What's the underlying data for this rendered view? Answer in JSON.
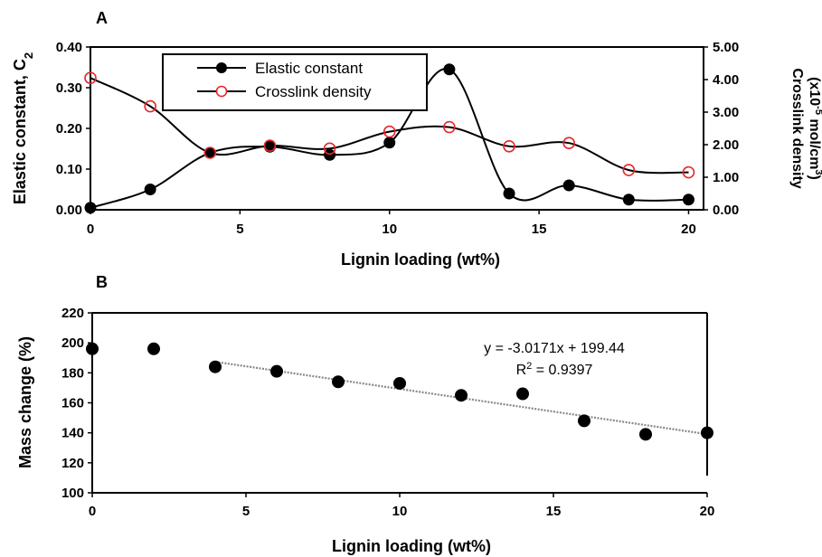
{
  "chart_data": [
    {
      "panel": "A",
      "type": "line",
      "xlabel": "Lignin loading (wt%)",
      "ylabel": "Elastic constant, C",
      "ylabel_sub": "2",
      "ylabel_right_prefix": "Crosslink density",
      "ylabel_right_units": "(x10",
      "ylabel_right_exp": "-5",
      "ylabel_right_units2": " mol/cm",
      "ylabel_right_exp2": "3",
      "ylabel_right_close": ")",
      "xlim": [
        0,
        20.5
      ],
      "ylim": [
        0,
        0.4
      ],
      "ylim_right": [
        0,
        5
      ],
      "xticks": [
        "0",
        "5",
        "10",
        "15",
        "20"
      ],
      "xtick_values": [
        0,
        5,
        10,
        15,
        20
      ],
      "yticks": [
        "0.00",
        "0.10",
        "0.20",
        "0.30",
        "0.40"
      ],
      "ytick_values": [
        0,
        0.1,
        0.2,
        0.3,
        0.4
      ],
      "yticks_right": [
        "0.00",
        "1.00",
        "2.00",
        "3.00",
        "4.00",
        "5.00"
      ],
      "ytick_values_right": [
        0,
        1,
        2,
        3,
        4,
        5
      ],
      "legend_position": "top-center",
      "series": [
        {
          "name": "Elastic constant",
          "axis": "left",
          "marker": "filled-circle",
          "color": "#000000",
          "x": [
            0,
            2,
            4,
            6,
            8,
            10,
            12,
            14,
            16,
            18,
            20
          ],
          "y": [
            0.005,
            0.05,
            0.14,
            0.155,
            0.135,
            0.165,
            0.345,
            0.04,
            0.06,
            0.025,
            0.025
          ]
        },
        {
          "name": "Crosslink density",
          "axis": "right",
          "marker": "open-circle",
          "color": "#000000",
          "marker_color": "#e8262b",
          "x": [
            0,
            2,
            4,
            6,
            8,
            10,
            12,
            14,
            16,
            18,
            20
          ],
          "y": [
            4.05,
            3.18,
            1.75,
            1.97,
            1.88,
            2.4,
            2.54,
            1.95,
            2.05,
            1.22,
            1.15
          ]
        }
      ]
    },
    {
      "panel": "B",
      "type": "scatter",
      "xlabel": "Lignin loading (wt%)",
      "ylabel": "Mass change (%)",
      "xlim": [
        0,
        20
      ],
      "ylim": [
        100,
        220
      ],
      "xticks": [
        "0",
        "5",
        "10",
        "15",
        "20"
      ],
      "xtick_values": [
        0,
        5,
        10,
        15,
        20
      ],
      "yticks": [
        "100",
        "120",
        "140",
        "160",
        "180",
        "200",
        "220"
      ],
      "ytick_values": [
        100,
        120,
        140,
        160,
        180,
        200,
        220
      ],
      "series": [
        {
          "marker": "filled-circle",
          "color": "#000000",
          "x": [
            0,
            2,
            4,
            6,
            8,
            10,
            12,
            14,
            16,
            18,
            20
          ],
          "y": [
            196,
            196,
            184,
            181,
            174,
            173,
            165,
            166,
            148,
            139,
            140
          ]
        }
      ],
      "trendline": {
        "x_range": [
          4,
          20
        ],
        "slope": -3.0171,
        "intercept": 199.44,
        "color": "#888888",
        "equation": "y = -3.0171x + 199.44",
        "r2_label": "R",
        "r2_exp": "2",
        "r2_value": " = 0.9397"
      }
    }
  ]
}
